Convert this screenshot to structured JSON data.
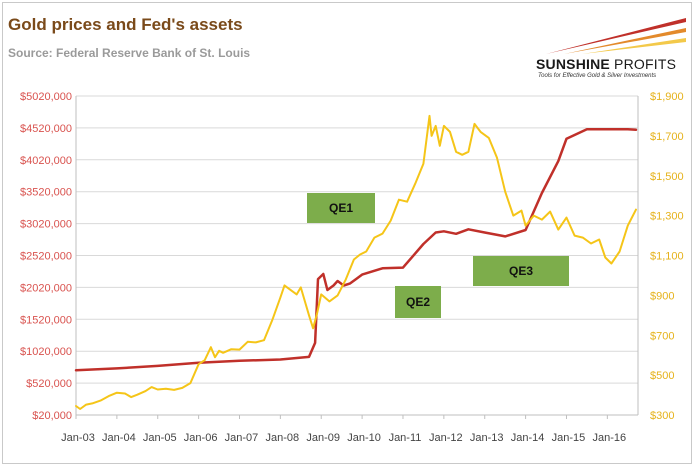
{
  "header": {
    "title": "Gold prices and Fed's assets",
    "subtitle": "Source: Federal Reserve Bank of St. Louis"
  },
  "logo": {
    "brand_bold": "SUNSHINE",
    "brand_light": "PROFITS",
    "tagline": "Tools for Effective Gold & Silver Investments"
  },
  "colors": {
    "fed_line": "#c0302a",
    "gold_line": "#f5c518",
    "left_axis_text": "#d9534f",
    "right_axis_text": "#e6b21a",
    "annotation_bg": "#7dad4b",
    "plot_bg": "#ffffff",
    "grid": "#d9d9d9"
  },
  "annotations": [
    {
      "label": "QE1"
    },
    {
      "label": "QE2"
    },
    {
      "label": "QE3"
    }
  ],
  "chart_data": {
    "type": "line",
    "title": "Gold prices and Fed's assets",
    "x_tick_labels": [
      "Jan-03",
      "Jan-04",
      "Jan-05",
      "Jan-06",
      "Jan-07",
      "Jan-08",
      "Jan-09",
      "Jan-10",
      "Jan-11",
      "Jan-12",
      "Jan-13",
      "Jan-14",
      "Jan-15",
      "Jan-16"
    ],
    "xlim": [
      2003.0,
      2016.75
    ],
    "y_left": {
      "ticks": [
        20000,
        520000,
        1020000,
        1520000,
        2020000,
        2520000,
        3020000,
        3520000,
        4020000,
        4520000,
        5020000
      ],
      "tick_labels": [
        "$20,000",
        "$520,000",
        "$1020,000",
        "$1520,000",
        "$2020,000",
        "$2520,000",
        "$3020,000",
        "$3520,000",
        "$4020,000",
        "$4520,000",
        "$5020,000"
      ],
      "ylim": [
        20000,
        5020000
      ]
    },
    "y_right": {
      "ticks": [
        300,
        500,
        700,
        900,
        1100,
        1300,
        1500,
        1700,
        1900
      ],
      "tick_labels": [
        "$300",
        "$500",
        "$700",
        "$900",
        "$1,100",
        "$1,300",
        "$1,500",
        "$1,700",
        "$1,900"
      ],
      "ylim": [
        300,
        1900
      ]
    },
    "grid": "horizontal",
    "legend": "none",
    "series": [
      {
        "name": "Fed's assets",
        "axis": "left",
        "x": [
          2003.0,
          2004.0,
          2005.0,
          2006.0,
          2007.0,
          2008.0,
          2008.7,
          2008.85,
          2008.92,
          2009.05,
          2009.15,
          2009.3,
          2009.4,
          2009.55,
          2009.7,
          2009.85,
          2010.0,
          2010.5,
          2011.0,
          2011.5,
          2011.8,
          2012.0,
          2012.3,
          2012.6,
          2013.0,
          2013.5,
          2014.0,
          2014.4,
          2014.8,
          2015.0,
          2015.5,
          2016.0,
          2016.5,
          2016.7
        ],
        "values": [
          720000,
          750000,
          790000,
          840000,
          870000,
          890000,
          930000,
          1150000,
          2150000,
          2230000,
          1980000,
          2050000,
          2120000,
          2050000,
          2080000,
          2150000,
          2220000,
          2320000,
          2330000,
          2700000,
          2880000,
          2900000,
          2860000,
          2930000,
          2880000,
          2820000,
          2920000,
          3500000,
          4000000,
          4350000,
          4500000,
          4500000,
          4500000,
          4490000
        ]
      },
      {
        "name": "Gold price",
        "axis": "right",
        "x": [
          2003.0,
          2003.1,
          2003.25,
          2003.4,
          2003.6,
          2003.8,
          2004.0,
          2004.2,
          2004.35,
          2004.5,
          2004.7,
          2004.85,
          2005.0,
          2005.2,
          2005.4,
          2005.6,
          2005.8,
          2006.0,
          2006.15,
          2006.3,
          2006.4,
          2006.5,
          2006.6,
          2006.8,
          2007.0,
          2007.2,
          2007.4,
          2007.6,
          2007.8,
          2008.0,
          2008.1,
          2008.2,
          2008.3,
          2008.4,
          2008.5,
          2008.6,
          2008.7,
          2008.8,
          2008.9,
          2009.0,
          2009.2,
          2009.4,
          2009.6,
          2009.8,
          2009.95,
          2010.1,
          2010.3,
          2010.5,
          2010.7,
          2010.9,
          2011.1,
          2011.3,
          2011.5,
          2011.65,
          2011.7,
          2011.8,
          2011.9,
          2012.0,
          2012.15,
          2012.3,
          2012.45,
          2012.6,
          2012.75,
          2012.9,
          2013.1,
          2013.3,
          2013.5,
          2013.7,
          2013.9,
          2014.0,
          2014.2,
          2014.4,
          2014.6,
          2014.8,
          2015.0,
          2015.2,
          2015.4,
          2015.6,
          2015.8,
          2015.95,
          2016.1,
          2016.3,
          2016.5,
          2016.7
        ],
        "values": [
          345,
          330,
          352,
          358,
          372,
          395,
          412,
          408,
          390,
          402,
          420,
          440,
          428,
          432,
          426,
          436,
          460,
          555,
          575,
          640,
          590,
          622,
          612,
          630,
          628,
          667,
          664,
          675,
          775,
          890,
          950,
          935,
          920,
          905,
          940,
          870,
          800,
          735,
          810,
          905,
          870,
          900,
          980,
          1080,
          1105,
          1120,
          1190,
          1210,
          1275,
          1380,
          1370,
          1460,
          1560,
          1800,
          1700,
          1750,
          1650,
          1750,
          1720,
          1620,
          1605,
          1620,
          1760,
          1720,
          1690,
          1590,
          1420,
          1300,
          1325,
          1250,
          1300,
          1280,
          1320,
          1230,
          1290,
          1200,
          1190,
          1160,
          1180,
          1090,
          1060,
          1120,
          1250,
          1330
        ]
      }
    ]
  }
}
